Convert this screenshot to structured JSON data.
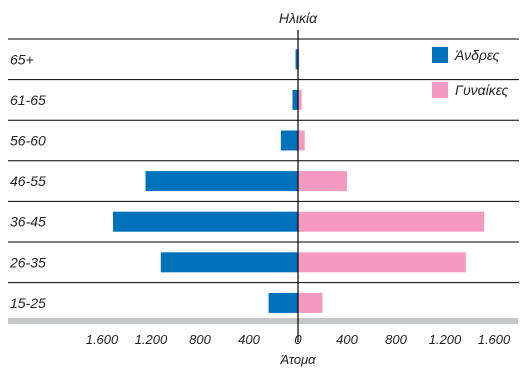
{
  "chart_data": {
    "type": "bar",
    "orientation": "horizontal",
    "layout": "population-pyramid",
    "title": "Ηλικία",
    "xlabel": "Άτομα",
    "ylabel": "",
    "categories": [
      "65+",
      "61-65",
      "56-60",
      "46-55",
      "36-45",
      "26-35",
      "15-25"
    ],
    "series": [
      {
        "name": "Άνδρες",
        "side": "left",
        "color": "#0072bc",
        "values": [
          20,
          45,
          140,
          1245,
          1510,
          1120,
          240
        ]
      },
      {
        "name": "Γυναίκες",
        "side": "right",
        "color": "#f49ac1",
        "values": [
          10,
          30,
          55,
          400,
          1520,
          1370,
          200
        ]
      }
    ],
    "xlim": [
      -1600,
      1600
    ],
    "ticks": [
      -1600,
      -1200,
      -800,
      -400,
      0,
      400,
      800,
      1200,
      1600
    ],
    "tick_labels": [
      "1.600",
      "1.200",
      "800",
      "400",
      "0",
      "400",
      "800",
      "1.200",
      "1.600"
    ],
    "grid": "horizontal-row-separators",
    "legend_position": "top-right"
  }
}
